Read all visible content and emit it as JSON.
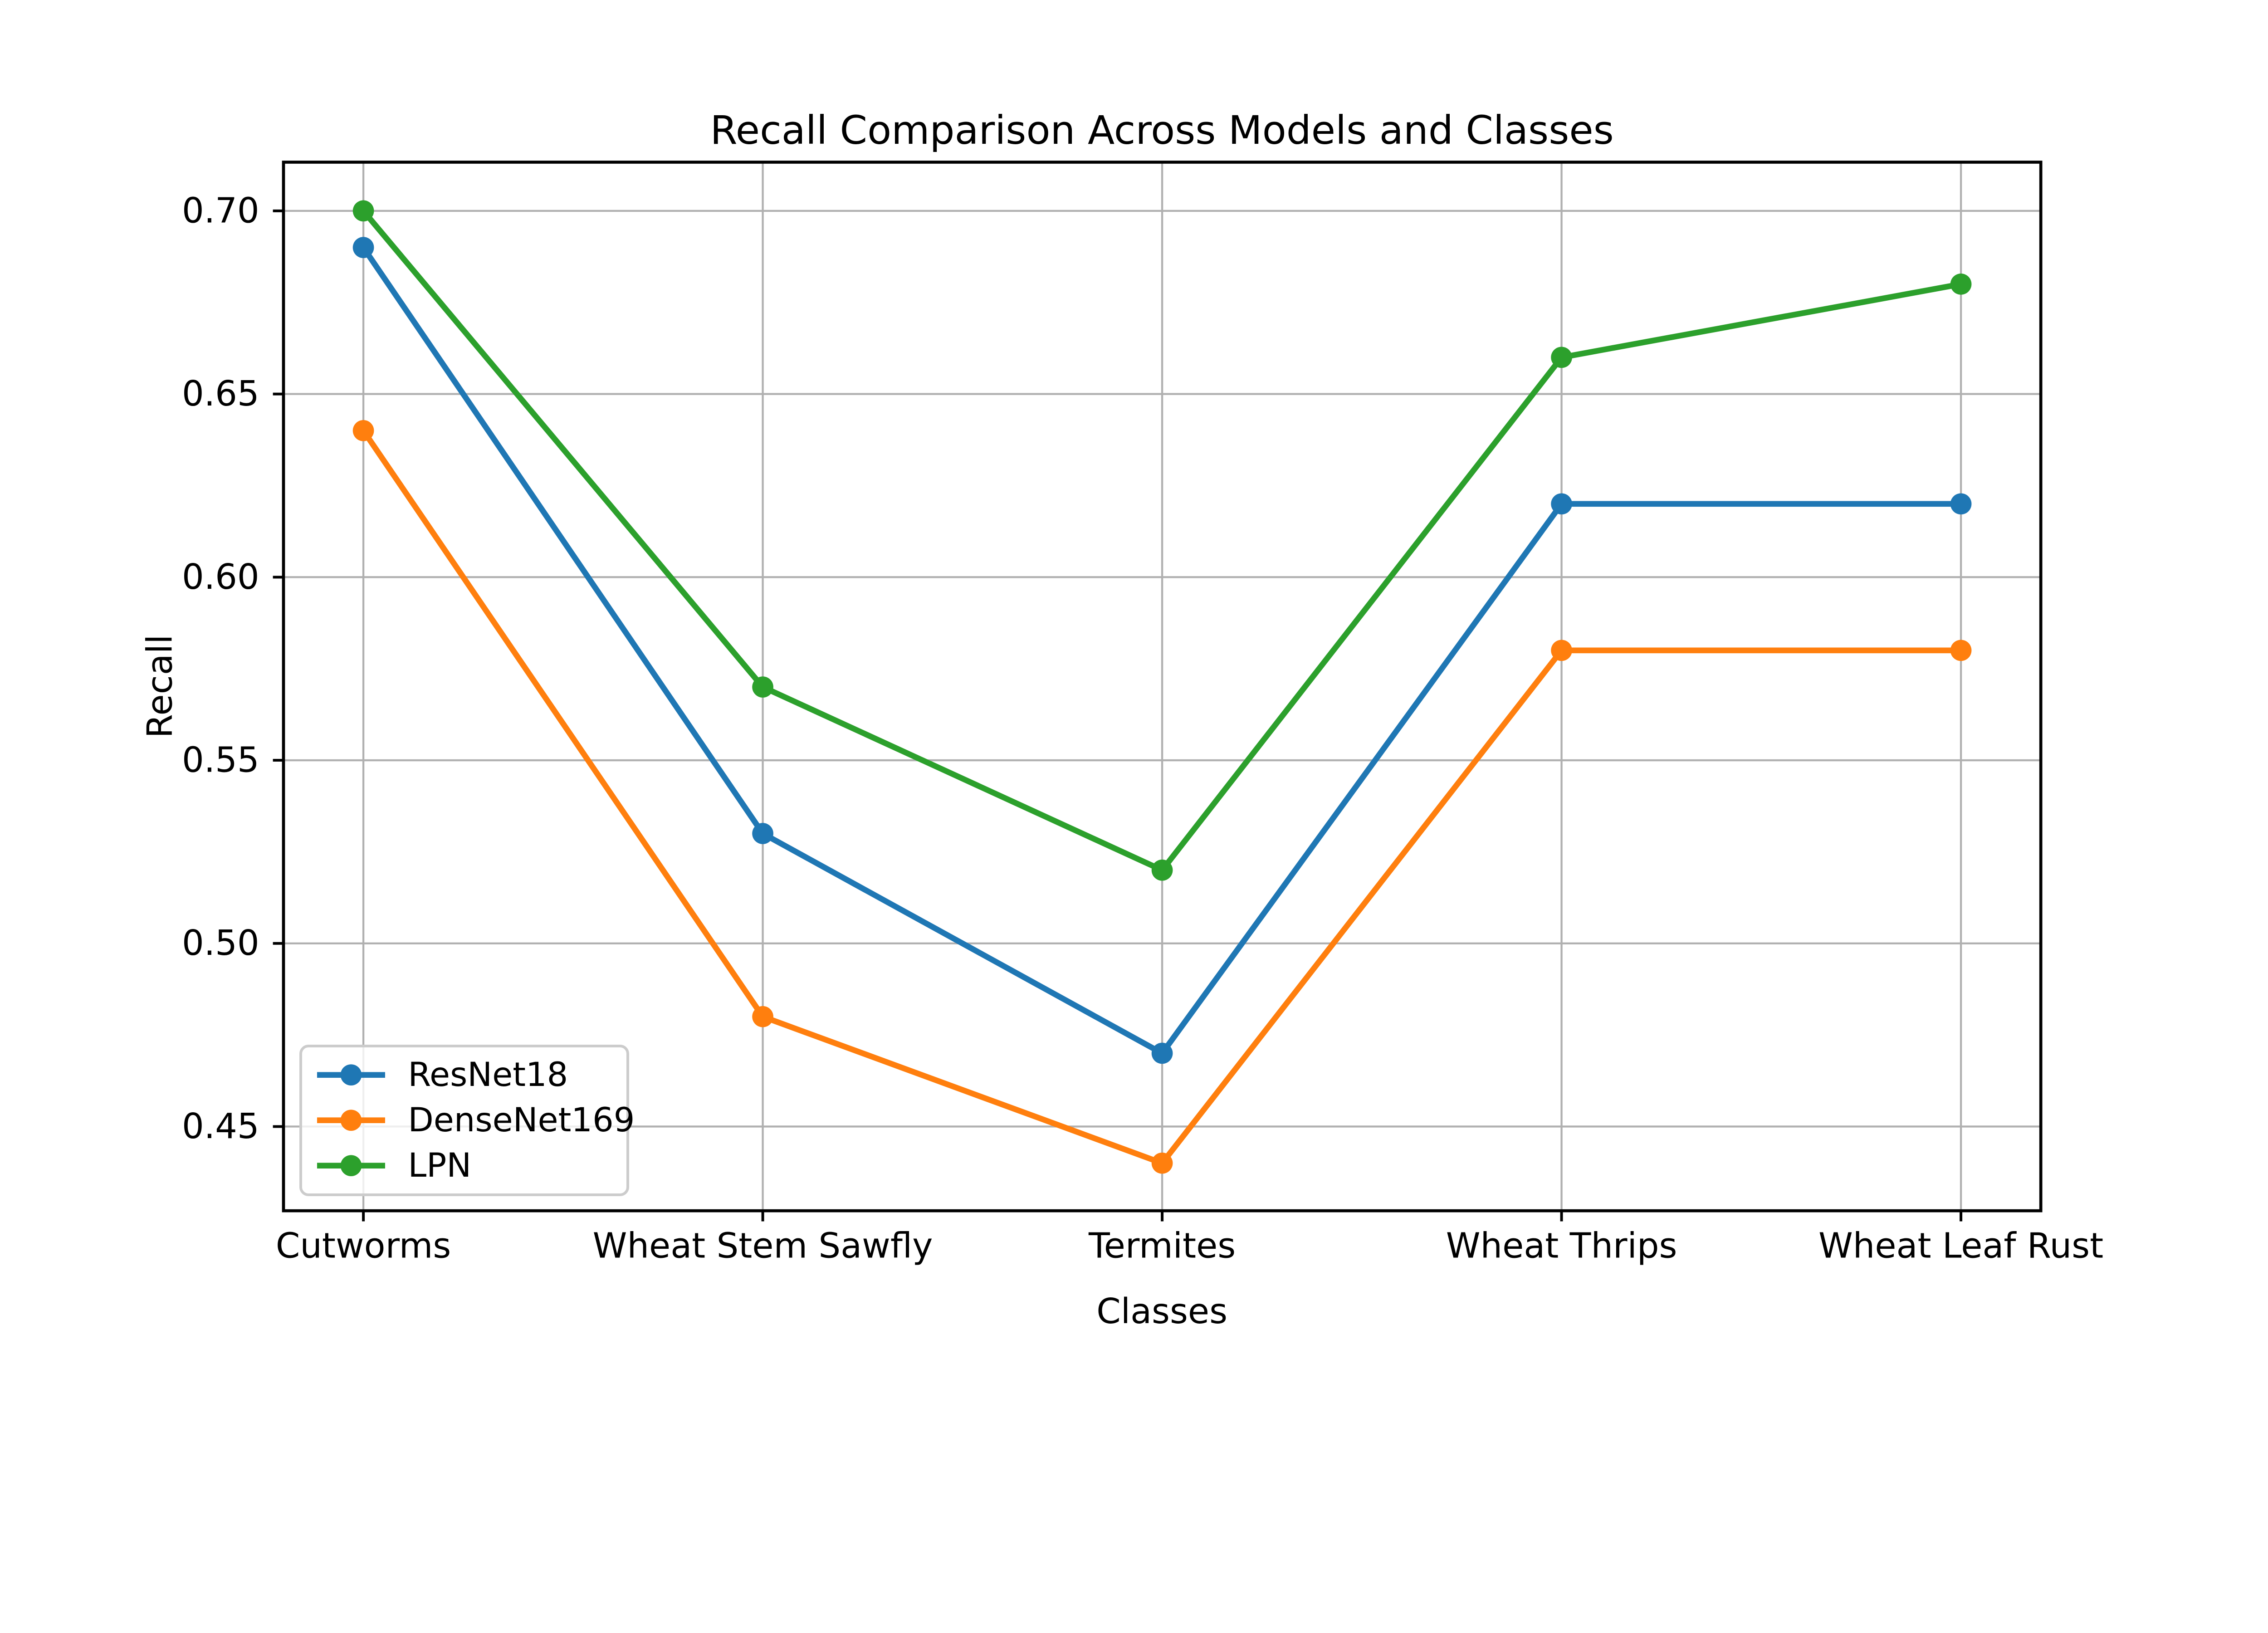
{
  "figure": {
    "background": "#ffffff",
    "axis_color": "#000000"
  },
  "chart_data": {
    "type": "line",
    "title": "Recall Comparison Across Models and Classes",
    "xlabel": "Classes",
    "ylabel": "Recall",
    "categories": [
      "Cutworms",
      "Wheat Stem Sawfly",
      "Termites",
      "Wheat Thrips",
      "Wheat Leaf Rust"
    ],
    "series": [
      {
        "name": "ResNet18",
        "color": "#1f77b4",
        "marker": "circle",
        "values": [
          0.69,
          0.53,
          0.47,
          0.62,
          0.62
        ]
      },
      {
        "name": "DenseNet169",
        "color": "#ff7f0e",
        "marker": "circle",
        "values": [
          0.64,
          0.48,
          0.44,
          0.58,
          0.58
        ]
      },
      {
        "name": "LPN",
        "color": "#2ca02c",
        "marker": "circle",
        "values": [
          0.7,
          0.57,
          0.52,
          0.66,
          0.68
        ]
      }
    ],
    "yticks": [
      0.45,
      0.5,
      0.55,
      0.6,
      0.65,
      0.7
    ],
    "ytick_labels": [
      "0.45",
      "0.50",
      "0.55",
      "0.60",
      "0.65",
      "0.70"
    ],
    "ylim": [
      0.427,
      0.7133
    ],
    "xlim": [
      -0.2,
      4.2
    ],
    "grid": true,
    "grid_color": "#b0b0b0",
    "legend": {
      "position": "lower left",
      "labels": [
        "ResNet18",
        "DenseNet169",
        "LPN"
      ]
    }
  }
}
